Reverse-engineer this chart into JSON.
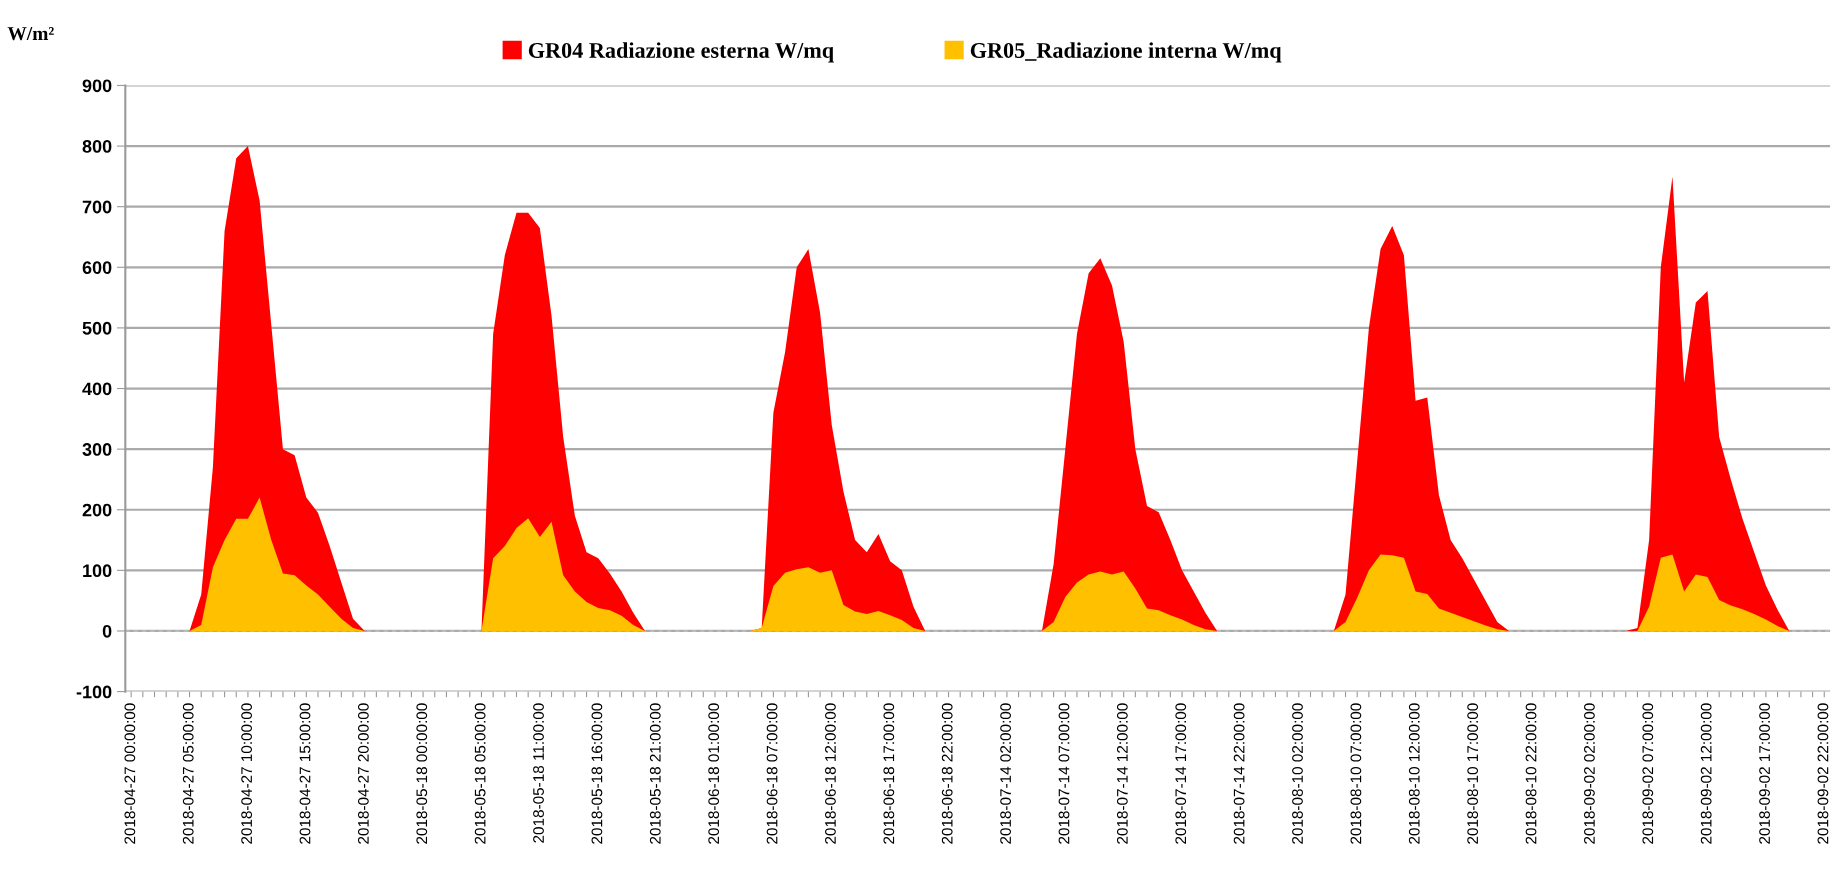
{
  "chart_data": {
    "type": "area",
    "ylabel": "W/m²",
    "categories": [
      "2018-04-27 00:00:00",
      null,
      null,
      null,
      null,
      "2018-04-27 05:00:00",
      null,
      null,
      null,
      null,
      "2018-04-27 10:00:00",
      null,
      null,
      null,
      null,
      "2018-04-27 15:00:00",
      null,
      null,
      null,
      null,
      "2018-04-27 20:00:00",
      null,
      null,
      null,
      null,
      "2018-05-18 00:00:00",
      null,
      null,
      null,
      null,
      "2018-05-18 05:00:00",
      null,
      null,
      null,
      null,
      "2018-05-18 11:00:00",
      null,
      null,
      null,
      null,
      "2018-05-18 16:00:00",
      null,
      null,
      null,
      null,
      "2018-05-18 21:00:00",
      null,
      null,
      null,
      null,
      "2018-06-18 01:00:00",
      null,
      null,
      null,
      null,
      "2018-06-18 07:00:00",
      null,
      null,
      null,
      null,
      "2018-06-18 12:00:00",
      null,
      null,
      null,
      null,
      "2018-06-18 17:00:00",
      null,
      null,
      null,
      null,
      "2018-06-18 22:00:00",
      null,
      null,
      null,
      null,
      "2018-07-14 02:00:00",
      null,
      null,
      null,
      null,
      "2018-07-14 07:00:00",
      null,
      null,
      null,
      null,
      "2018-07-14 12:00:00",
      null,
      null,
      null,
      null,
      "2018-07-14 17:00:00",
      null,
      null,
      null,
      null,
      "2018-07-14 22:00:00",
      null,
      null,
      null,
      null,
      "2018-08-10 02:00:00",
      null,
      null,
      null,
      null,
      "2018-08-10 07:00:00",
      null,
      null,
      null,
      null,
      "2018-08-10 12:00:00",
      null,
      null,
      null,
      null,
      "2018-08-10 17:00:00",
      null,
      null,
      null,
      null,
      "2018-08-10 22:00:00",
      null,
      null,
      null,
      null,
      "2018-09-02 02:00:00",
      null,
      null,
      null,
      null,
      "2018-09-02 07:00:00",
      null,
      null,
      null,
      null,
      "2018-09-02 12:00:00",
      null,
      null,
      null,
      null,
      "2018-09-02 17:00:00",
      null,
      null,
      null,
      null,
      "2018-09-02 22:00:00"
    ],
    "series": [
      {
        "name": "GR04 Radiazione esterna W/mq",
        "color": "#ff0000",
        "values": [
          0,
          0,
          0,
          0,
          0,
          0,
          60,
          270,
          660,
          780,
          800,
          710,
          505,
          300,
          290,
          220,
          195,
          140,
          80,
          20,
          0,
          0,
          0,
          0,
          0,
          0,
          0,
          0,
          0,
          0,
          0,
          490,
          620,
          690,
          690,
          665,
          520,
          320,
          190,
          130,
          120,
          95,
          65,
          30,
          0,
          0,
          0,
          0,
          0,
          0,
          0,
          0,
          0,
          0,
          5,
          360,
          460,
          600,
          630,
          525,
          340,
          230,
          150,
          130,
          160,
          115,
          100,
          40,
          0,
          0,
          0,
          0,
          0,
          0,
          0,
          0,
          0,
          0,
          0,
          110,
          300,
          490,
          590,
          615,
          570,
          477,
          300,
          206,
          196,
          150,
          100,
          65,
          30,
          0,
          0,
          0,
          0,
          0,
          0,
          0,
          0,
          0,
          0,
          0,
          60,
          280,
          500,
          630,
          668,
          620,
          380,
          385,
          224,
          150,
          120,
          85,
          50,
          15,
          0,
          0,
          0,
          0,
          0,
          0,
          0,
          0,
          0,
          0,
          0,
          5,
          150,
          600,
          750,
          410,
          542,
          561,
          320,
          250,
          185,
          130,
          75,
          35,
          0,
          0,
          0,
          0
        ]
      },
      {
        "name": "GR05_Radiazione interna W/mq",
        "color": "#ffc000",
        "values": [
          0,
          0,
          0,
          0,
          0,
          0,
          10,
          105,
          150,
          185,
          185,
          220,
          150,
          95,
          92,
          75,
          60,
          40,
          20,
          5,
          0,
          0,
          0,
          0,
          0,
          0,
          0,
          0,
          0,
          0,
          0,
          120,
          140,
          170,
          186,
          155,
          180,
          92,
          65,
          48,
          38,
          34,
          25,
          10,
          0,
          0,
          0,
          0,
          0,
          0,
          0,
          0,
          0,
          0,
          5,
          74,
          96,
          102,
          105,
          96,
          100,
          43,
          32,
          28,
          33,
          26,
          18,
          5,
          0,
          0,
          0,
          0,
          0,
          0,
          0,
          0,
          0,
          0,
          0,
          15,
          56,
          80,
          93,
          98,
          93,
          98,
          70,
          37,
          34,
          26,
          19,
          10,
          3,
          0,
          0,
          0,
          0,
          0,
          0,
          0,
          0,
          0,
          0,
          0,
          15,
          55,
          100,
          126,
          125,
          121,
          65,
          61,
          37,
          30,
          23,
          16,
          9,
          3,
          0,
          0,
          0,
          0,
          0,
          0,
          0,
          0,
          0,
          0,
          0,
          0,
          40,
          121,
          126,
          65,
          93,
          89,
          51,
          42,
          36,
          28,
          19,
          8,
          0,
          0,
          0,
          0
        ]
      }
    ],
    "ylim": [
      -100,
      900
    ],
    "yticks": [
      -100,
      0,
      100,
      200,
      300,
      400,
      500,
      600,
      700,
      800,
      900
    ],
    "grid": "y",
    "legend": "top"
  }
}
